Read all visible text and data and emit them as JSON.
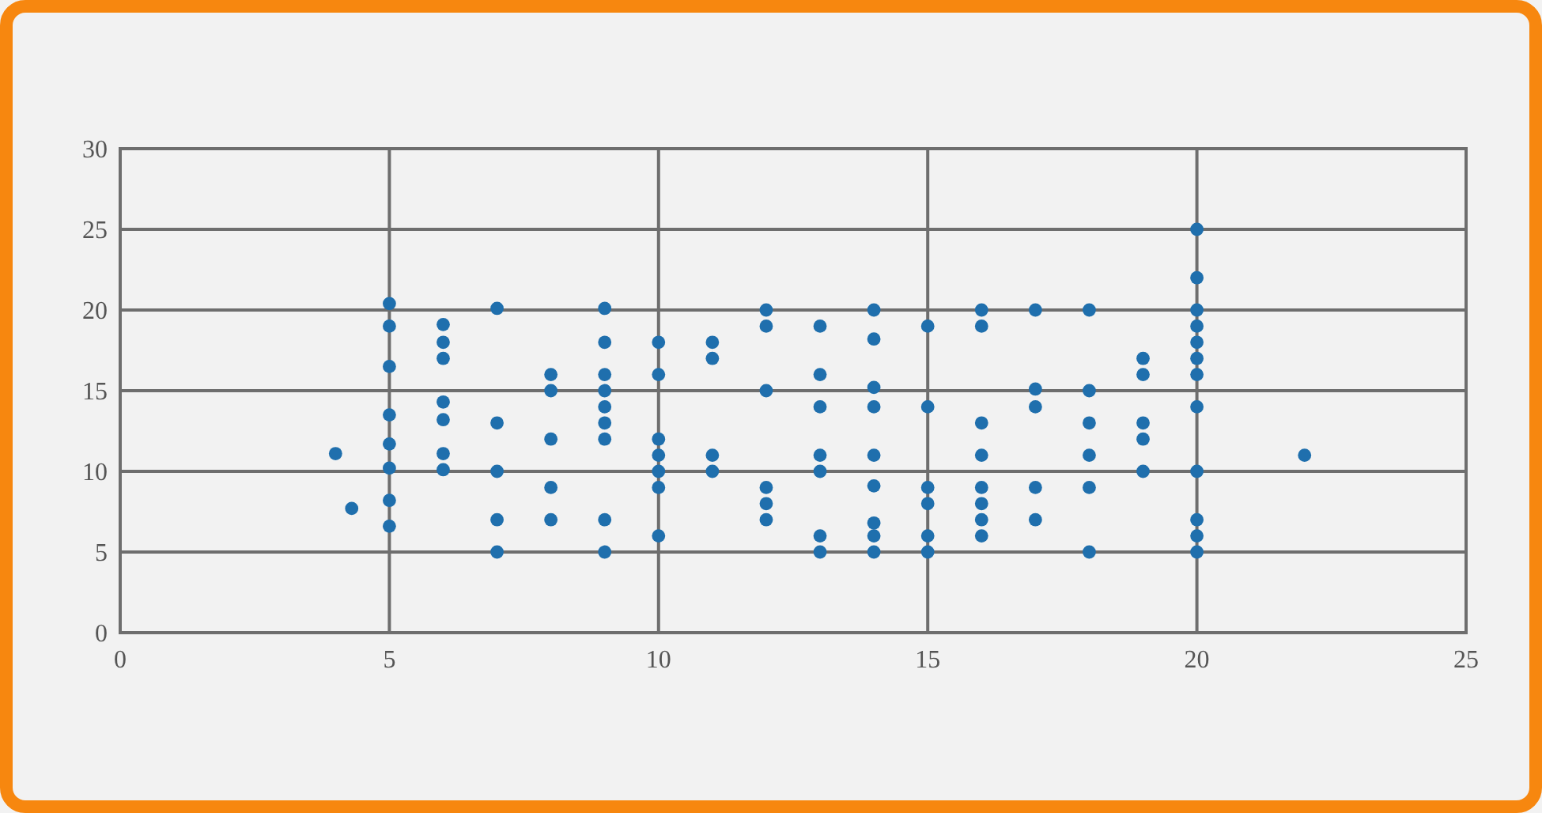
{
  "chart_data": {
    "type": "scatter",
    "xlim": [
      0,
      25
    ],
    "ylim": [
      0,
      30
    ],
    "xticks": [
      0,
      5,
      10,
      15,
      20,
      25
    ],
    "yticks": [
      0,
      5,
      10,
      15,
      20,
      25,
      30
    ],
    "grid": true,
    "marker": "circle",
    "series": [
      {
        "color": "#1f6fad",
        "x": [
          4,
          4.3,
          5,
          5,
          5,
          5,
          5,
          5,
          5,
          5,
          6,
          6,
          6,
          6,
          6,
          6,
          6,
          7,
          7,
          7,
          7,
          7,
          8,
          8,
          8,
          8,
          8,
          9,
          9,
          9,
          9,
          9,
          9,
          9,
          9,
          9,
          10,
          10,
          10,
          10,
          10,
          10,
          10,
          11,
          11,
          11,
          11,
          12,
          12,
          12,
          12,
          12,
          12,
          13,
          13,
          13,
          13,
          13,
          13,
          13,
          14,
          14,
          14,
          14,
          14,
          14,
          14,
          14,
          14,
          15,
          15,
          15,
          15,
          15,
          15,
          16,
          16,
          16,
          16,
          16,
          16,
          16,
          16,
          17,
          17,
          17,
          17,
          17,
          18,
          18,
          18,
          18,
          18,
          18,
          19,
          19,
          19,
          19,
          19,
          20,
          20,
          20,
          20,
          20,
          20,
          20,
          20,
          20,
          20,
          20,
          20,
          22
        ],
        "values": [
          11.1,
          7.7,
          20.4,
          19,
          16.5,
          13.5,
          11.7,
          10.2,
          8.2,
          6.6,
          19.1,
          18,
          17,
          14.3,
          13.2,
          11.1,
          10.1,
          20.1,
          13,
          10,
          7,
          5,
          16,
          15,
          12,
          9,
          7,
          20.1,
          18,
          16,
          15,
          14,
          13,
          12,
          7,
          5,
          18,
          16,
          12,
          11,
          10,
          9,
          6,
          18,
          17,
          11,
          10,
          20,
          19,
          15,
          9,
          8,
          7,
          19,
          16,
          14,
          11,
          10,
          6,
          5,
          20,
          18.2,
          15.2,
          14,
          11,
          9.1,
          6.8,
          6,
          5,
          19,
          14,
          9,
          8,
          6,
          5,
          20,
          19,
          13,
          11,
          9,
          8,
          7,
          6,
          20,
          15.1,
          14,
          9,
          7,
          20,
          15,
          13,
          11,
          9,
          5,
          17,
          16,
          13,
          12,
          10,
          25,
          22,
          20,
          19,
          18,
          17,
          16,
          14,
          10,
          7,
          6,
          5,
          11
        ]
      }
    ]
  }
}
